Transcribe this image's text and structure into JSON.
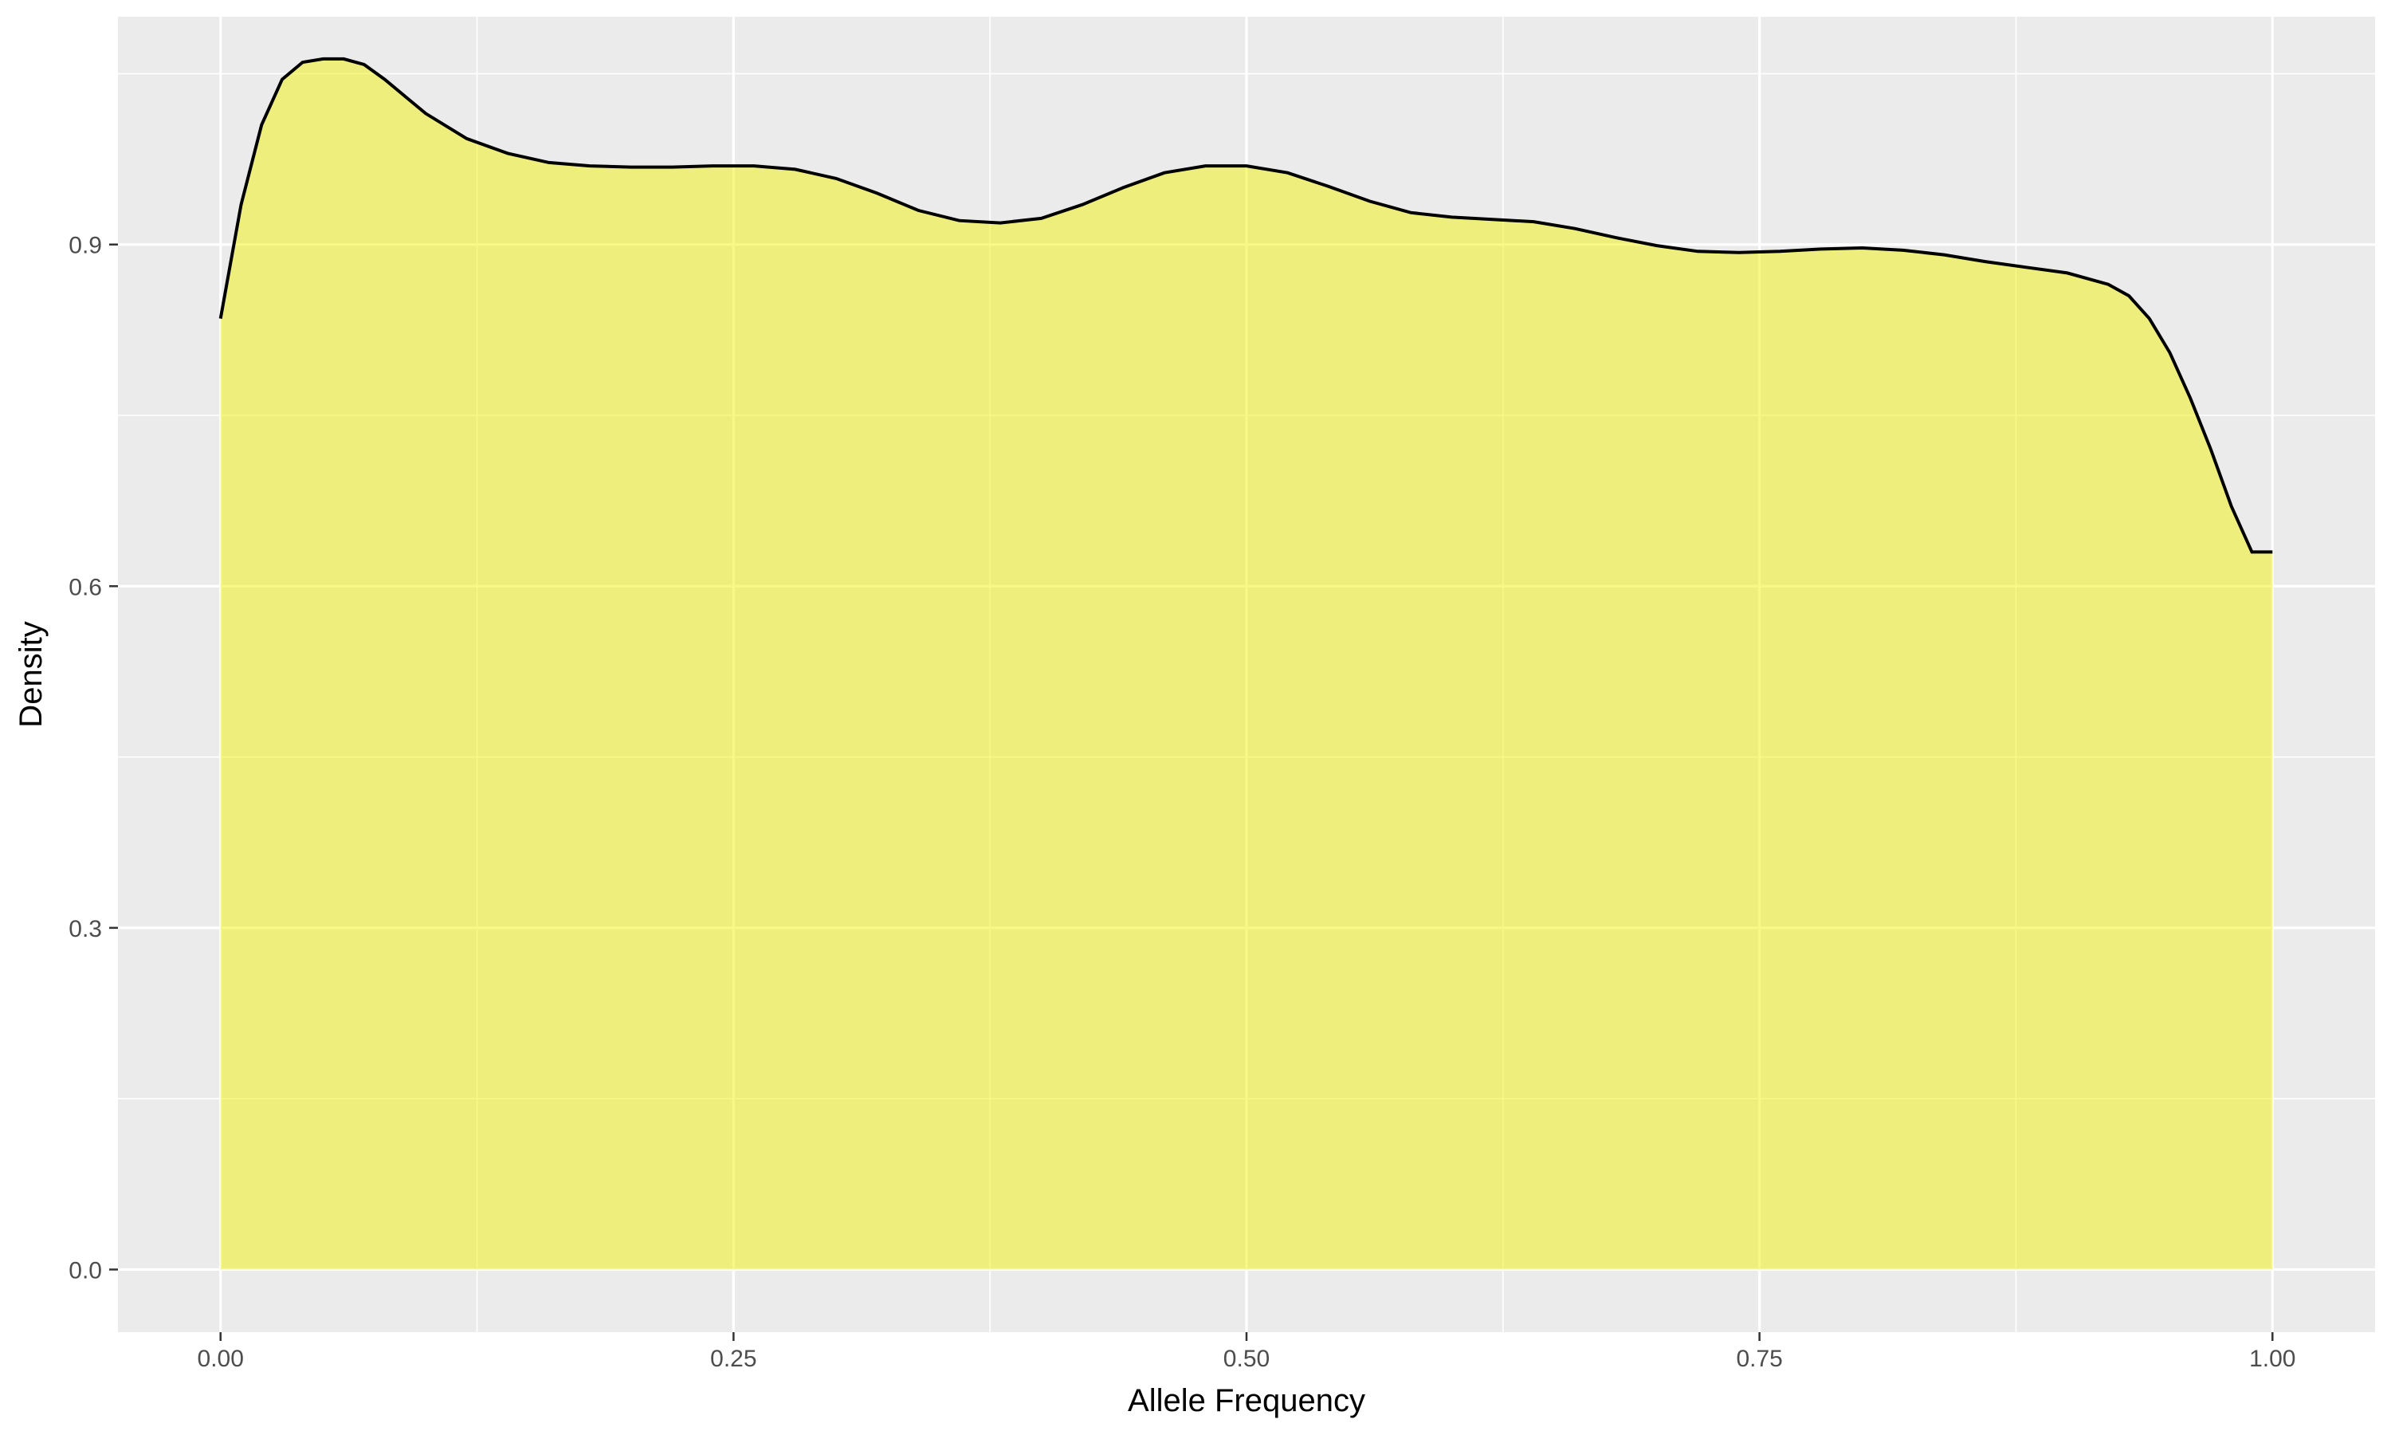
{
  "chart_data": {
    "type": "area",
    "title": "",
    "xlabel": "Allele Frequency",
    "ylabel": "Density",
    "xlim": [
      -0.05,
      1.05
    ],
    "ylim": [
      -0.055,
      1.1
    ],
    "x_ticks": [
      0.0,
      0.25,
      0.5,
      0.75,
      1.0
    ],
    "x_tick_labels": [
      "0.00",
      "0.25",
      "0.50",
      "0.75",
      "1.00"
    ],
    "x_minor_ticks": [
      0.125,
      0.375,
      0.625,
      0.875
    ],
    "y_ticks": [
      0.0,
      0.3,
      0.6,
      0.9
    ],
    "y_tick_labels": [
      "0.0",
      "0.3",
      "0.6",
      "0.9"
    ],
    "y_minor_ticks": [
      0.15,
      0.45,
      0.75,
      1.05
    ],
    "grid": true,
    "legend": "none",
    "series": [
      {
        "x": [
          0.0,
          0.01,
          0.02,
          0.03,
          0.04,
          0.05,
          0.06,
          0.07,
          0.08,
          0.09,
          0.1,
          0.12,
          0.14,
          0.16,
          0.18,
          0.2,
          0.22,
          0.24,
          0.26,
          0.28,
          0.3,
          0.32,
          0.34,
          0.36,
          0.38,
          0.4,
          0.42,
          0.44,
          0.46,
          0.48,
          0.5,
          0.52,
          0.54,
          0.56,
          0.58,
          0.6,
          0.62,
          0.64,
          0.66,
          0.68,
          0.7,
          0.72,
          0.74,
          0.76,
          0.78,
          0.8,
          0.82,
          0.84,
          0.86,
          0.88,
          0.9,
          0.92,
          0.93,
          0.94,
          0.95,
          0.96,
          0.97,
          0.98,
          0.99,
          1.0
        ],
        "y": [
          0.835,
          0.935,
          1.005,
          1.045,
          1.06,
          1.063,
          1.063,
          1.058,
          1.045,
          1.03,
          1.015,
          0.993,
          0.98,
          0.972,
          0.969,
          0.968,
          0.968,
          0.969,
          0.969,
          0.966,
          0.958,
          0.945,
          0.93,
          0.921,
          0.919,
          0.923,
          0.935,
          0.95,
          0.963,
          0.969,
          0.969,
          0.963,
          0.951,
          0.938,
          0.928,
          0.924,
          0.922,
          0.92,
          0.914,
          0.906,
          0.899,
          0.894,
          0.893,
          0.894,
          0.896,
          0.897,
          0.895,
          0.891,
          0.885,
          0.88,
          0.875,
          0.865,
          0.855,
          0.835,
          0.805,
          0.765,
          0.72,
          0.67,
          0.63,
          0.63
        ]
      }
    ],
    "colors": {
      "fill": "#f2f20d",
      "fill_opacity": 0.5,
      "line": "#000000",
      "panel": "#ebebeb",
      "grid": "#ffffff",
      "text": "#4d4d4d",
      "axis_title": "#000000"
    }
  }
}
